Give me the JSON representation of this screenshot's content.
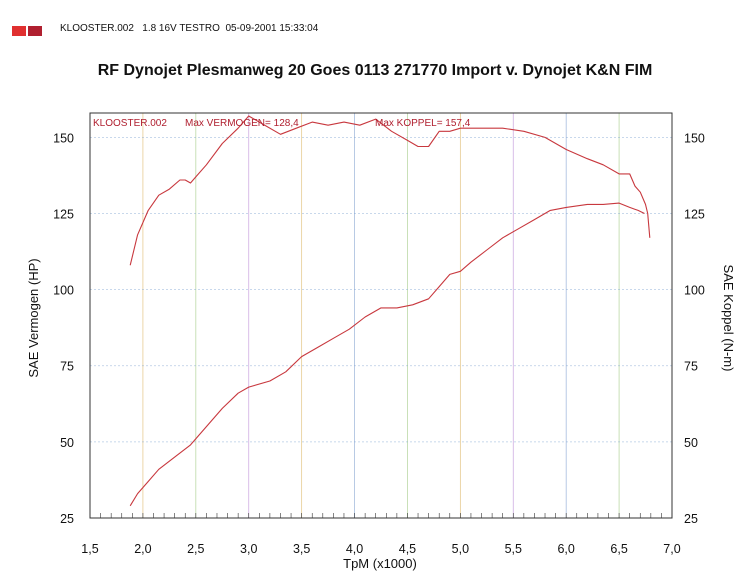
{
  "header": {
    "colors": [
      "#e03030",
      "#b02030"
    ],
    "run_info": "KLOOSTER.002   1.8 16V TESTRO  05-09-2001 15:33:04",
    "title": "RF Dynojet  Plesmanweg 20  Goes 0113 271770 Import v. Dynojet  K&N  FIM"
  },
  "chart_data": {
    "type": "line",
    "xlabel": "TpM (x1000)",
    "ylabel_left": "SAE Vermogen (HP)",
    "ylabel_right": "SAE Koppel (N-m)",
    "xlim": [
      1.5,
      7.0
    ],
    "ylim": [
      25,
      158
    ],
    "x_ticks": [
      "1,5",
      "2,0",
      "2,5",
      "3,0",
      "3,5",
      "4,0",
      "4,5",
      "5,0",
      "5,5",
      "6,0",
      "6,5",
      "7,0"
    ],
    "y_ticks_left": [
      "25",
      "50",
      "75",
      "100",
      "125",
      "150"
    ],
    "y_ticks_right": [
      "25",
      "50",
      "75",
      "100",
      "125",
      "150"
    ],
    "grid": true,
    "line_color": "#c8383e",
    "annotations": {
      "run": "KLOOSTER.002",
      "max_power": "Max VERMOGEN= 128,4",
      "max_torque": "Max KOPPEL= 157,4"
    },
    "series": [
      {
        "x": [
          1.88,
          1.95,
          2.05,
          2.15,
          2.25,
          2.35,
          2.4,
          2.45,
          2.5,
          2.6,
          2.75,
          2.9,
          3.0,
          3.1,
          3.3,
          3.45,
          3.6,
          3.75,
          3.9,
          4.05,
          4.2,
          4.35,
          4.5,
          4.6,
          4.7,
          4.8,
          4.9,
          5.0,
          5.2,
          5.4,
          5.6,
          5.8,
          6.0,
          6.2,
          6.35,
          6.5,
          6.6,
          6.65,
          6.7,
          6.75,
          6.77,
          6.79
        ],
        "y": [
          108,
          118,
          126,
          131,
          133,
          136,
          136,
          135,
          137,
          141,
          148,
          153,
          157,
          155,
          151,
          153,
          155,
          154,
          155,
          154,
          156,
          152,
          149,
          147,
          147,
          152,
          152,
          153,
          153,
          153,
          152,
          150,
          146,
          143,
          141,
          138,
          138,
          134,
          132,
          128,
          125,
          117
        ]
      },
      {
        "x": [
          1.88,
          1.95,
          2.05,
          2.15,
          2.3,
          2.45,
          2.6,
          2.75,
          2.9,
          3.0,
          3.2,
          3.35,
          3.5,
          3.65,
          3.8,
          3.95,
          4.1,
          4.25,
          4.4,
          4.55,
          4.7,
          4.8,
          4.9,
          5.0,
          5.1,
          5.25,
          5.4,
          5.55,
          5.7,
          5.85,
          6.0,
          6.2,
          6.35,
          6.5,
          6.6,
          6.68,
          6.74
        ],
        "y": [
          29,
          33,
          37,
          41,
          45,
          49,
          55,
          61,
          66,
          68,
          70,
          73,
          78,
          81,
          84,
          87,
          91,
          94,
          94,
          95,
          97,
          101,
          105,
          106,
          109,
          113,
          117,
          120,
          123,
          126,
          127,
          128,
          128,
          128.4,
          127,
          126,
          125
        ]
      }
    ]
  }
}
